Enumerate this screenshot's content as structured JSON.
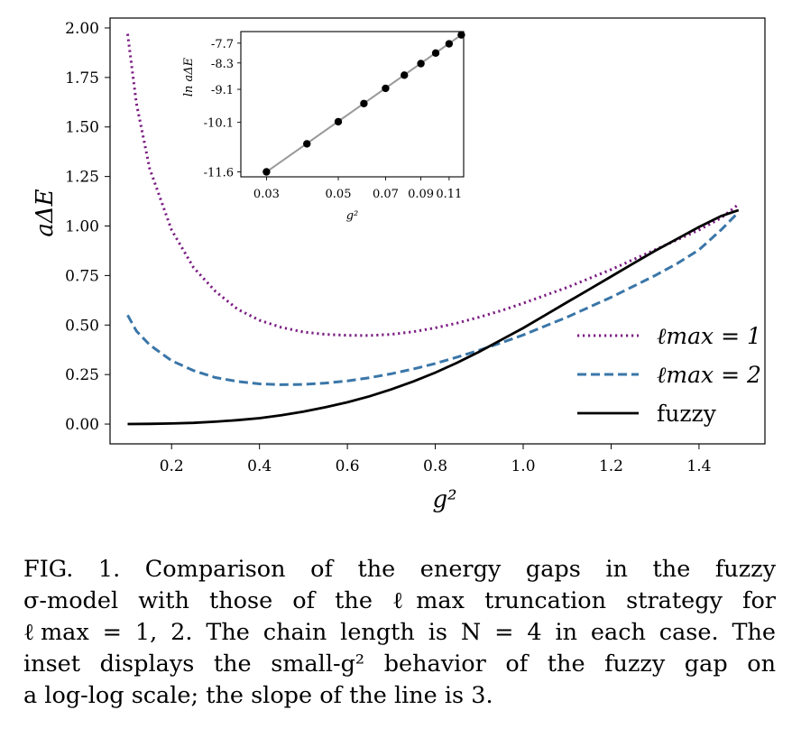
{
  "chart_data": [
    {
      "type": "line",
      "xlabel": "g²",
      "ylabel": "aΔE",
      "xlim": [
        0.06,
        1.55
      ],
      "ylim": [
        -0.1,
        2.05
      ],
      "xticks": [
        0.2,
        0.4,
        0.6,
        0.8,
        1.0,
        1.2,
        1.4
      ],
      "xtick_labels": [
        "0.2",
        "0.4",
        "0.6",
        "0.8",
        "1.0",
        "1.2",
        "1.4"
      ],
      "yticks": [
        0.0,
        0.25,
        0.5,
        0.75,
        1.0,
        1.25,
        1.5,
        1.75,
        2.0
      ],
      "ytick_labels": [
        "0.00",
        "0.25",
        "0.50",
        "0.75",
        "1.00",
        "1.25",
        "1.50",
        "1.75",
        "2.00"
      ],
      "grid": false,
      "legend_position": "lower-right",
      "series": [
        {
          "name": "ℓmax = 1",
          "color": "#7b1c83",
          "style": "dotted",
          "x": [
            0.1,
            0.12,
            0.15,
            0.2,
            0.25,
            0.3,
            0.35,
            0.4,
            0.45,
            0.5,
            0.55,
            0.6,
            0.65,
            0.7,
            0.75,
            0.8,
            0.85,
            0.9,
            0.95,
            1.0,
            1.05,
            1.1,
            1.15,
            1.2,
            1.25,
            1.3,
            1.35,
            1.4,
            1.45,
            1.49
          ],
          "y": [
            1.97,
            1.62,
            1.29,
            0.98,
            0.79,
            0.67,
            0.58,
            0.524,
            0.488,
            0.465,
            0.453,
            0.448,
            0.447,
            0.453,
            0.466,
            0.486,
            0.51,
            0.54,
            0.573,
            0.61,
            0.65,
            0.69,
            0.735,
            0.78,
            0.83,
            0.88,
            0.93,
            0.98,
            1.04,
            1.11
          ]
        },
        {
          "name": "ℓmax = 2",
          "color": "#3a76a8",
          "style": "dashed",
          "x": [
            0.1,
            0.12,
            0.15,
            0.2,
            0.25,
            0.3,
            0.35,
            0.4,
            0.45,
            0.5,
            0.55,
            0.6,
            0.65,
            0.7,
            0.75,
            0.8,
            0.85,
            0.9,
            0.95,
            1.0,
            1.05,
            1.1,
            1.15,
            1.2,
            1.25,
            1.3,
            1.35,
            1.4,
            1.45,
            1.49
          ],
          "y": [
            0.55,
            0.47,
            0.4,
            0.32,
            0.27,
            0.235,
            0.215,
            0.203,
            0.199,
            0.2,
            0.207,
            0.218,
            0.234,
            0.254,
            0.278,
            0.306,
            0.338,
            0.373,
            0.41,
            0.45,
            0.495,
            0.54,
            0.59,
            0.64,
            0.695,
            0.75,
            0.81,
            0.88,
            0.98,
            1.07
          ]
        },
        {
          "name": "fuzzy",
          "color": "#000000",
          "style": "solid",
          "x": [
            0.1,
            0.15,
            0.2,
            0.25,
            0.3,
            0.35,
            0.4,
            0.45,
            0.5,
            0.55,
            0.6,
            0.65,
            0.7,
            0.75,
            0.8,
            0.85,
            0.9,
            0.95,
            1.0,
            1.05,
            1.1,
            1.15,
            1.2,
            1.25,
            1.3,
            1.35,
            1.4,
            1.45,
            1.49
          ],
          "y": [
            0.0,
            0.001,
            0.003,
            0.006,
            0.012,
            0.02,
            0.03,
            0.045,
            0.063,
            0.085,
            0.11,
            0.14,
            0.175,
            0.215,
            0.26,
            0.31,
            0.365,
            0.425,
            0.485,
            0.55,
            0.615,
            0.68,
            0.745,
            0.81,
            0.875,
            0.935,
            0.995,
            1.05,
            1.08
          ]
        }
      ]
    },
    {
      "type": "scatter",
      "xlabel": "g²",
      "ylabel": "ln aΔE",
      "xlim": [
        0.025,
        0.122
      ],
      "ylim": [
        -11.75,
        -7.35
      ],
      "xticks": [
        0.03,
        0.05,
        0.07,
        0.09,
        0.11
      ],
      "xtick_labels": [
        "0.03",
        "0.05",
        "0.07",
        "0.09",
        "0.11"
      ],
      "yticks": [
        -11.6,
        -10.1,
        -9.1,
        -8.3,
        -7.7
      ],
      "ytick_labels": [
        "-11.6",
        "-10.1",
        "-9.1",
        "-8.3",
        "-7.7"
      ],
      "grid": false,
      "x_scale": "log",
      "points": {
        "x": [
          0.03,
          0.04,
          0.05,
          0.06,
          0.07,
          0.08,
          0.09,
          0.1,
          0.11,
          0.12
        ],
        "y": [
          -11.6,
          -10.75,
          -10.08,
          -9.53,
          -9.07,
          -8.67,
          -8.32,
          -8.0,
          -7.72,
          -7.45
        ]
      },
      "fit_line": {
        "color": "#999999"
      }
    }
  ],
  "caption": {
    "lines": [
      "FIG. 1.  Comparison of the energy gaps in the fuzzy",
      "σ-model with those of the ℓmax truncation strategy for",
      "ℓmax = 1, 2. The chain length is N = 4 in each case. The",
      "inset displays the small-g² behavior of the fuzzy gap on",
      "a log-log scale; the slope of the line is 3."
    ]
  }
}
